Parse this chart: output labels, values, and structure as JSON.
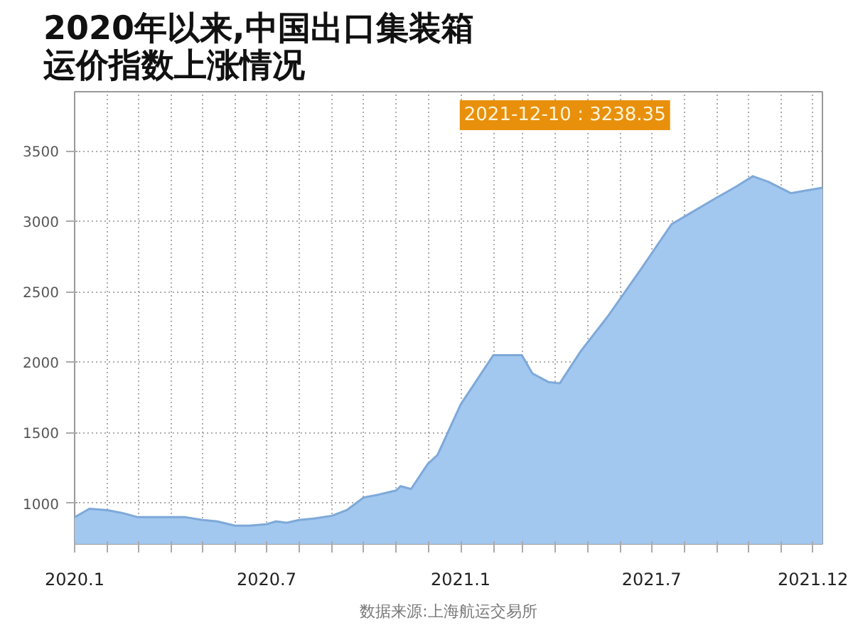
{
  "chart_data": {
    "type": "area",
    "title": "2020年以来,中国出口集装箱运价指数上涨情况",
    "color": "#a3c8f0",
    "x": [
      "2020-01-01",
      "2020-01-15",
      "2020-02-01",
      "2020-02-15",
      "2020-03-01",
      "2020-04-01",
      "2020-04-15",
      "2020-05-01",
      "2020-05-15",
      "2020-06-01",
      "2020-06-15",
      "2020-07-01",
      "2020-07-10",
      "2020-07-20",
      "2020-08-01",
      "2020-08-15",
      "2020-09-01",
      "2020-09-15",
      "2020-10-01",
      "2020-10-15",
      "2020-11-01",
      "2020-11-05",
      "2020-11-15",
      "2020-12-01",
      "2020-12-10",
      "2021-01-01",
      "2021-02-01",
      "2021-02-28",
      "2021-03-10",
      "2021-03-25",
      "2021-04-05",
      "2021-04-25",
      "2021-05-20",
      "2021-06-20",
      "2021-07-20",
      "2021-08-05",
      "2021-08-30",
      "2021-09-20",
      "2021-10-05",
      "2021-10-20",
      "2021-11-10",
      "2021-12-10"
    ],
    "values": [
      900,
      960,
      950,
      930,
      900,
      900,
      900,
      880,
      870,
      840,
      840,
      850,
      870,
      860,
      880,
      890,
      910,
      950,
      1040,
      1060,
      1090,
      1120,
      1100,
      1280,
      1340,
      1700,
      2050,
      2050,
      1920,
      1860,
      1850,
      2080,
      2320,
      2650,
      2980,
      3050,
      3160,
      3250,
      3320,
      3280,
      3200,
      3238.35
    ],
    "xlim": [
      "2020-01-01",
      "2021-12-10"
    ],
    "xticks": [
      {
        "value": "2020-01-01",
        "label": "2020.1"
      },
      {
        "value": "2020-02-01",
        "label": null
      },
      {
        "value": "2020-03-01",
        "label": null
      },
      {
        "value": "2020-04-01",
        "label": null
      },
      {
        "value": "2020-05-01",
        "label": null
      },
      {
        "value": "2020-06-01",
        "label": null
      },
      {
        "value": "2020-07-01",
        "label": "2020.7"
      },
      {
        "value": "2020-08-01",
        "label": null
      },
      {
        "value": "2020-09-01",
        "label": null
      },
      {
        "value": "2020-10-01",
        "label": null
      },
      {
        "value": "2020-11-01",
        "label": null
      },
      {
        "value": "2020-12-01",
        "label": null
      },
      {
        "value": "2021-01-01",
        "label": "2021.1"
      },
      {
        "value": "2021-02-01",
        "label": null
      },
      {
        "value": "2021-03-01",
        "label": null
      },
      {
        "value": "2021-04-01",
        "label": null
      },
      {
        "value": "2021-05-01",
        "label": null
      },
      {
        "value": "2021-06-01",
        "label": null
      },
      {
        "value": "2021-07-01",
        "label": "2021.7"
      },
      {
        "value": "2021-08-01",
        "label": null
      },
      {
        "value": "2021-09-01",
        "label": null
      },
      {
        "value": "2021-10-01",
        "label": null
      },
      {
        "value": "2021-11-01",
        "label": null
      },
      {
        "value": "2021-12-01",
        "label": "2021.12"
      }
    ],
    "ylim": [
      710,
      3920
    ],
    "yticks": [
      1000,
      1500,
      2000,
      2500,
      3000,
      3500
    ],
    "grid": true,
    "annotations": [
      "2021-12-10 : 3238.35",
      "数据来源:上海航运交易所"
    ]
  }
}
